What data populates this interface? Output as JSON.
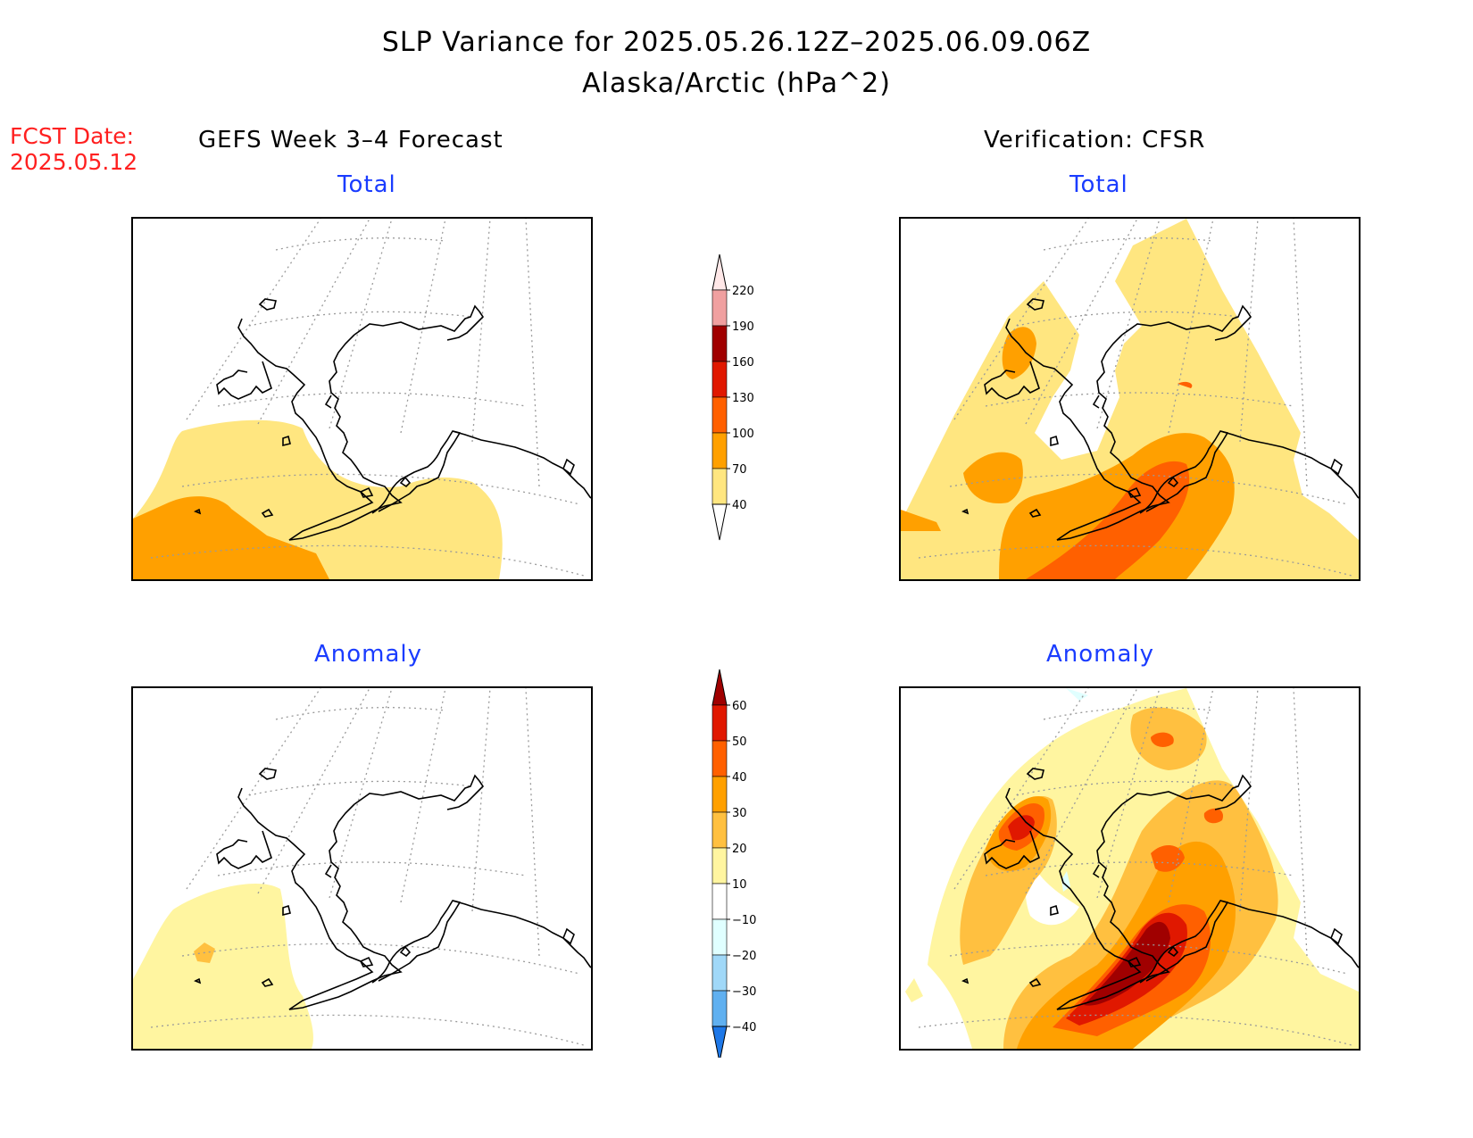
{
  "title": {
    "line1": "SLP Variance for 2025.05.26.12Z–2025.06.09.06Z",
    "line2": "Alaska/Arctic (hPa^2)"
  },
  "fcst_date": {
    "label": "FCST Date:",
    "value": "2025.05.12"
  },
  "columns": {
    "left_header": "GEFS Week 3–4 Forecast",
    "right_header": "Verification: CFSR"
  },
  "panels": {
    "top_left_title": "Total",
    "top_right_title": "Total",
    "bottom_left_title": "Anomaly",
    "bottom_right_title": "Anomaly"
  },
  "colorbars": {
    "total": {
      "levels": [
        "40",
        "70",
        "100",
        "130",
        "160",
        "190",
        "220"
      ],
      "colors": [
        "#ffe680",
        "#ffa000",
        "#ff6000",
        "#e01800",
        "#a00000",
        "#f0a0a0",
        "#ffe8e8"
      ]
    },
    "anomaly": {
      "levels": [
        "60",
        "50",
        "40",
        "30",
        "20",
        "10",
        "−10",
        "−20",
        "−30",
        "−40"
      ],
      "colors": [
        "#a00000",
        "#e01800",
        "#ff6000",
        "#ffa000",
        "#ffc040",
        "#fff5a0",
        "#ffffff",
        "#e0ffff",
        "#a0d8f8",
        "#60b0f0",
        "#1e78e8"
      ]
    }
  }
}
